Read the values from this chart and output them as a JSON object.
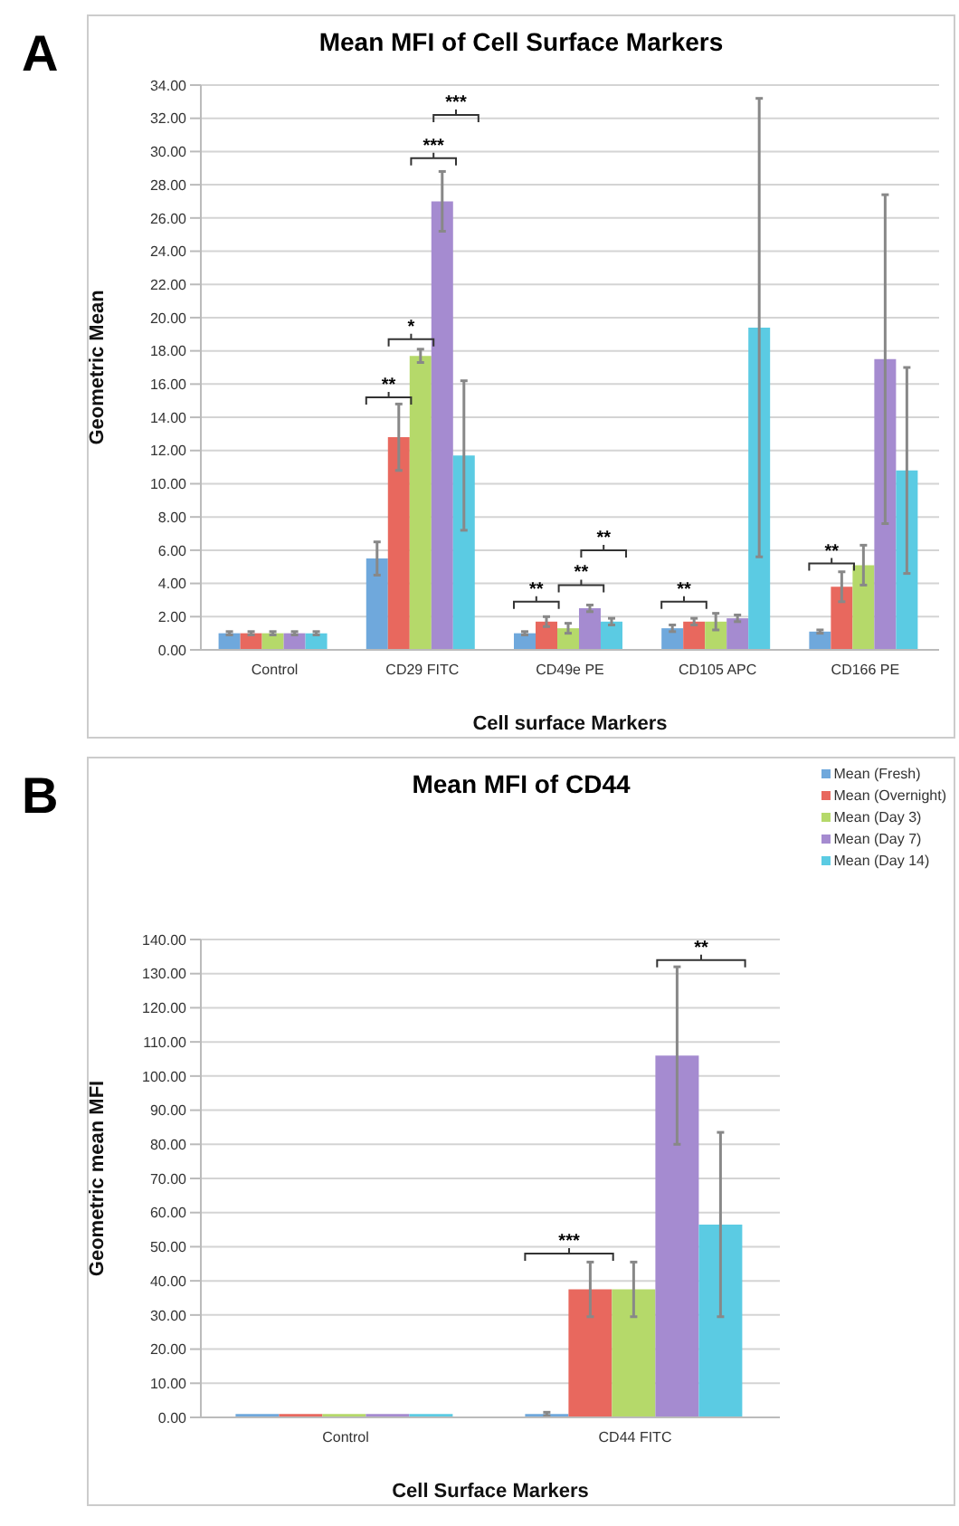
{
  "chart_data": [
    {
      "type": "bar",
      "title": "Mean MFI of Cell Surface Markers",
      "xlabel": "Cell surface Markers",
      "ylabel": "Geometric Mean",
      "categories": [
        "Control",
        "CD29 FITC",
        "CD49e PE",
        "CD105 APC",
        "CD166 PE"
      ],
      "series": [
        {
          "color": "#6fa8dc",
          "values": [
            1.0,
            5.5,
            1.0,
            1.3,
            1.1
          ],
          "errors": [
            0.1,
            1.0,
            0.1,
            0.2,
            0.1
          ]
        },
        {
          "color": "#e8685e",
          "values": [
            1.0,
            12.8,
            1.7,
            1.7,
            3.8
          ],
          "errors": [
            0.1,
            2.0,
            0.3,
            0.2,
            0.9
          ]
        },
        {
          "color": "#b5d96a",
          "values": [
            1.0,
            17.7,
            1.3,
            1.7,
            5.1
          ],
          "errors": [
            0.1,
            0.4,
            0.3,
            0.5,
            1.2
          ]
        },
        {
          "color": "#a58bd0",
          "values": [
            1.0,
            27.0,
            2.5,
            1.9,
            17.5
          ],
          "errors": [
            0.1,
            1.8,
            0.2,
            0.2,
            9.9
          ]
        },
        {
          "color": "#5bcbe3",
          "values": [
            1.0,
            11.7,
            1.7,
            19.4,
            10.8
          ],
          "errors": [
            0.1,
            4.5,
            0.2,
            13.8,
            6.2
          ]
        }
      ],
      "ylim": [
        0,
        34
      ],
      "yticks": [
        {
          "value": 0,
          "label": "0.00"
        },
        {
          "value": 2,
          "label": "2.00"
        },
        {
          "value": 4,
          "label": "4.00"
        },
        {
          "value": 6,
          "label": "6.00"
        },
        {
          "value": 8,
          "label": "8.00"
        },
        {
          "value": 10,
          "label": "10.00"
        },
        {
          "value": 12,
          "label": "12.00"
        },
        {
          "value": 14,
          "label": "14.00"
        },
        {
          "value": 16,
          "label": "16.00"
        },
        {
          "value": 18,
          "label": "18.00"
        },
        {
          "value": 20,
          "label": "20.00"
        },
        {
          "value": 22,
          "label": "22.00"
        },
        {
          "value": 24,
          "label": "24.00"
        },
        {
          "value": 26,
          "label": "26.00"
        },
        {
          "value": 28,
          "label": "28.00"
        },
        {
          "value": 30,
          "label": "30.00"
        },
        {
          "value": 32,
          "label": "32.00"
        },
        {
          "value": 34,
          "label": "34.00"
        }
      ],
      "grid": "y",
      "legend": false,
      "annotations": [
        "A",
        "**",
        "*",
        "***",
        "***",
        "**",
        "**",
        "**",
        "**",
        "**"
      ]
    },
    {
      "type": "bar",
      "title": "Mean MFI of CD44",
      "xlabel": "Cell Surface Markers",
      "ylabel": "Geometric mean MFI",
      "categories": [
        "Control",
        "CD44 FITC"
      ],
      "series": [
        {
          "name": "Mean (Fresh)",
          "color": "#6fa8dc",
          "values": [
            1.0,
            1.0
          ],
          "errors": [
            null,
            0.5
          ]
        },
        {
          "name": "Mean (Overnight)",
          "color": "#e8685e",
          "values": [
            1.0,
            37.5
          ],
          "errors": [
            null,
            8
          ]
        },
        {
          "name": "Mean (Day 3)",
          "color": "#b5d96a",
          "values": [
            1.0,
            37.5
          ],
          "errors": [
            null,
            8
          ]
        },
        {
          "name": "Mean (Day 7)",
          "color": "#a58bd0",
          "values": [
            1.0,
            106
          ],
          "errors": [
            null,
            26
          ]
        },
        {
          "name": "Mean (Day 14)",
          "color": "#5bcbe3",
          "values": [
            1.0,
            56.5
          ],
          "errors": [
            null,
            27
          ]
        }
      ],
      "ylim": [
        0,
        140
      ],
      "yticks": [
        {
          "value": 0,
          "label": "0.00"
        },
        {
          "value": 10,
          "label": "10.00"
        },
        {
          "value": 20,
          "label": "20.00"
        },
        {
          "value": 30,
          "label": "30.00"
        },
        {
          "value": 40,
          "label": "40.00"
        },
        {
          "value": 50,
          "label": "50.00"
        },
        {
          "value": 60,
          "label": "60.00"
        },
        {
          "value": 70,
          "label": "70.00"
        },
        {
          "value": 80,
          "label": "80.00"
        },
        {
          "value": 90,
          "label": "90.00"
        },
        {
          "value": 100,
          "label": "100.00"
        },
        {
          "value": 110,
          "label": "110.00"
        },
        {
          "value": 120,
          "label": "120.00"
        },
        {
          "value": 130,
          "label": "130.00"
        },
        {
          "value": 140,
          "label": "140.00"
        }
      ],
      "grid": "y",
      "legend": "top right",
      "annotations": [
        "B",
        "***",
        "**"
      ]
    }
  ]
}
